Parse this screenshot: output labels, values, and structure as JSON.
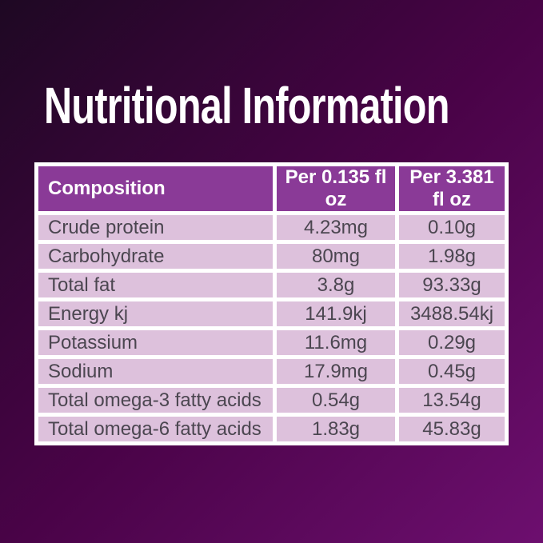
{
  "title": "Nutritional Information",
  "table": {
    "headers": [
      "Composition",
      "Per 0.135 fl oz",
      "Per 3.381 fl oz"
    ],
    "rows": [
      [
        "Crude protein",
        "4.23mg",
        "0.10g"
      ],
      [
        "Carbohydrate",
        "80mg",
        "1.98g"
      ],
      [
        "Total fat",
        "3.8g",
        "93.33g"
      ],
      [
        "Energy kj",
        "141.9kj",
        "3488.54kj"
      ],
      [
        "Potassium",
        "11.6mg",
        "0.29g"
      ],
      [
        "Sodium",
        "17.9mg",
        "0.45g"
      ],
      [
        "Total omega-3 fatty acids",
        "0.54g",
        "13.54g"
      ],
      [
        "Total omega-6 fatty acids",
        "1.83g",
        "45.83g"
      ]
    ]
  },
  "colors": {
    "background_top_left": "#1e0823",
    "background_middle": "#4a0348",
    "background_bottom_right": "#6d0f6f",
    "header_background": "#8a3a97",
    "row_background": "#ddc1dc",
    "row_text": "#4b4650",
    "frame": "#ffffff",
    "title_text": "#ffffff",
    "header_text": "#ffffff"
  }
}
